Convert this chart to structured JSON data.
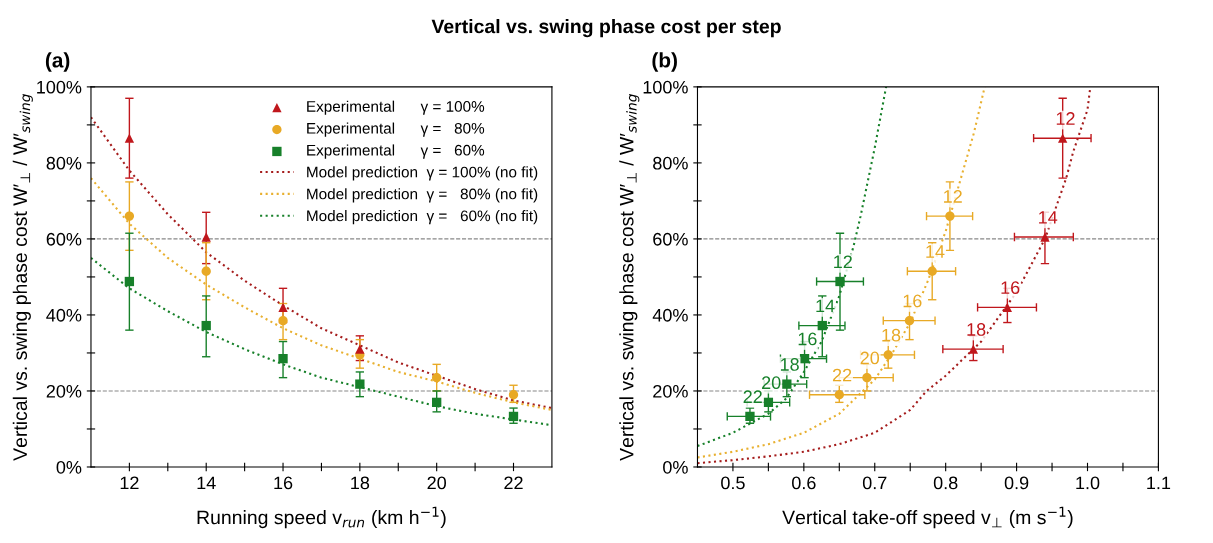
{
  "chart_data": [
    {
      "type": "scatter",
      "title": "(a)",
      "annotations": [
        "Vertical vs. swing phase cost per step"
      ],
      "xlabel": "Running speed v$_{run}$ (km h$^{−1}$)",
      "ylabel": "Vertical vs. swing phase cost W′$_{⊥}$ / W′$_{swing}$",
      "xlim": [
        11,
        23
      ],
      "xticks": [
        12,
        {
          "value": 13,
          "label": null
        },
        14,
        {
          "value": 15,
          "label": null
        },
        16,
        {
          "value": 17,
          "label": null
        },
        18,
        {
          "value": 19,
          "label": null
        },
        20,
        {
          "value": 21,
          "label": null
        },
        22
      ],
      "ylim": [
        0,
        100
      ],
      "yticks": [
        {
          "value": 0,
          "label": "0%"
        },
        {
          "value": 10,
          "label": null
        },
        {
          "value": 20,
          "label": "20%"
        },
        {
          "value": 30,
          "label": null
        },
        {
          "value": 40,
          "label": "40%"
        },
        {
          "value": 50,
          "label": null
        },
        {
          "value": 60,
          "label": "60%"
        },
        {
          "value": 70,
          "label": null
        },
        {
          "value": 80,
          "label": "80%"
        },
        {
          "value": 90,
          "label": null
        },
        {
          "value": 100,
          "label": "100%"
        }
      ],
      "ref_lines": [
        {
          "axis": "y",
          "value": 20,
          "color": "#888888",
          "line_style": "dashed"
        },
        {
          "axis": "y",
          "value": 60,
          "color": "#888888",
          "line_style": "dashed"
        }
      ],
      "grid": false,
      "legend": "top right",
      "series": [
        {
          "name": "Experimental      γ = 100%",
          "type": "scatter",
          "marker": "triangle",
          "color": "#c0171c",
          "x": [
            12,
            14,
            16,
            18
          ],
          "values": [
            86.5,
            60.5,
            42,
            31
          ],
          "errors": [
            [
              76,
              97
            ],
            [
              53.5,
              67
            ],
            [
              38,
              47
            ],
            [
              28,
              34.5
            ]
          ]
        },
        {
          "name": "Experimental      γ =   80%",
          "type": "scatter",
          "marker": "circle",
          "color": "#e8a925",
          "x": [
            12,
            14,
            16,
            18,
            20,
            22
          ],
          "values": [
            66,
            51.5,
            38.5,
            29.5,
            23.5,
            19
          ],
          "errors": [
            [
              57,
              75
            ],
            [
              44,
              59
            ],
            [
              33.5,
              43
            ],
            [
              26,
              33.5
            ],
            [
              20,
              27
            ],
            [
              17,
              21.5
            ]
          ]
        },
        {
          "name": "Experimental      γ =   60%",
          "type": "scatter",
          "marker": "square",
          "color": "#17802a",
          "x": [
            12,
            14,
            16,
            18,
            20,
            22
          ],
          "values": [
            48.8,
            37.2,
            28.5,
            21.8,
            17,
            13.3
          ],
          "errors": [
            [
              36,
              61.5
            ],
            [
              29,
              45
            ],
            [
              23.5,
              33
            ],
            [
              18.5,
              25
            ],
            [
              14.5,
              20
            ],
            [
              11.5,
              15.5
            ]
          ]
        },
        {
          "name": "Model prediction  γ = 100% (no fit)",
          "type": "line",
          "marker": "none",
          "line_style": "dotted",
          "color": "#a51c1c",
          "x": [
            11,
            12,
            13,
            14,
            15,
            16,
            17,
            18,
            19,
            20,
            21,
            22,
            23
          ],
          "values": [
            92,
            78,
            66.5,
            56.5,
            49,
            42.5,
            36.5,
            32,
            27.5,
            24,
            20.5,
            17.5,
            15.5
          ]
        },
        {
          "name": "Model prediction  γ =   80% (no fit)",
          "type": "line",
          "marker": "none",
          "line_style": "dotted",
          "color": "#e8b030",
          "x": [
            11,
            12,
            13,
            14,
            15,
            16,
            17,
            18,
            19,
            20,
            21,
            22,
            23
          ],
          "values": [
            76,
            64,
            55,
            48,
            42,
            36.5,
            32,
            28.5,
            25,
            22.5,
            19.5,
            17,
            15
          ]
        },
        {
          "name": "Model prediction  γ =   60% (no fit)",
          "type": "line",
          "marker": "none",
          "line_style": "dotted",
          "color": "#17802a",
          "x": [
            11,
            12,
            13,
            14,
            15,
            16,
            17,
            18,
            19,
            20,
            21,
            22,
            23
          ],
          "values": [
            55,
            47,
            41,
            35.5,
            31,
            27,
            23.5,
            21,
            18.5,
            16,
            14,
            12.5,
            11
          ]
        }
      ]
    },
    {
      "type": "scatter",
      "title": "(b)",
      "annotations": [
        {
          "text": "12",
          "x": 0.965,
          "y": 86.5
        },
        {
          "text": "14",
          "x": 0.94,
          "y": 60.5
        },
        {
          "text": "16",
          "x": 0.887,
          "y": 42
        },
        {
          "text": "18",
          "x": 0.839,
          "y": 31
        },
        {
          "text": "12",
          "x": 0.806,
          "y": 66
        },
        {
          "text": "14",
          "x": 0.781,
          "y": 51.5
        },
        {
          "text": "16",
          "x": 0.749,
          "y": 38.5
        },
        {
          "text": "18",
          "x": 0.719,
          "y": 29.5
        },
        {
          "text": "20",
          "x": 0.689,
          "y": 23.5
        },
        {
          "text": "22",
          "x": 0.65,
          "y": 19
        },
        {
          "text": "12",
          "x": 0.651,
          "y": 48.8
        },
        {
          "text": "14",
          "x": 0.626,
          "y": 37.2
        },
        {
          "text": "16",
          "x": 0.601,
          "y": 28.5
        },
        {
          "text": "18",
          "x": 0.576,
          "y": 21.8
        },
        {
          "text": "20",
          "x": 0.55,
          "y": 17
        },
        {
          "text": "22",
          "x": 0.524,
          "y": 13.3
        }
      ],
      "xlabel": "Vertical take-off speed v$_{⊥}$ (m s$^{−1}$)",
      "ylabel": "Vertical vs. swing phase cost W′$_{⊥}$ / W′$_{swing}$",
      "xlim": [
        0.45,
        1.1
      ],
      "xticks": [
        0.5,
        {
          "value": 0.55,
          "label": null
        },
        0.6,
        {
          "value": 0.65,
          "label": null
        },
        0.7,
        {
          "value": 0.75,
          "label": null
        },
        0.8,
        {
          "value": 0.85,
          "label": null
        },
        0.9,
        {
          "value": 0.95,
          "label": null
        },
        {
          "value": 1.0,
          "label": "1.0"
        },
        {
          "value": 1.05,
          "label": null
        },
        1.1
      ],
      "ylim": [
        0,
        100
      ],
      "yticks": [
        {
          "value": 0,
          "label": "0%"
        },
        {
          "value": 10,
          "label": null
        },
        {
          "value": 20,
          "label": "20%"
        },
        {
          "value": 30,
          "label": null
        },
        {
          "value": 40,
          "label": "40%"
        },
        {
          "value": 50,
          "label": null
        },
        {
          "value": 60,
          "label": "60%"
        },
        {
          "value": 70,
          "label": null
        },
        {
          "value": 80,
          "label": "80%"
        },
        {
          "value": 90,
          "label": null
        },
        {
          "value": 100,
          "label": "100%"
        }
      ],
      "ref_lines": [
        {
          "axis": "y",
          "value": 20,
          "color": "#888888",
          "line_style": "dashed"
        },
        {
          "axis": "y",
          "value": 60,
          "color": "#888888",
          "line_style": "dashed"
        }
      ],
      "grid": false,
      "series": [
        {
          "type": "scatter",
          "marker": "triangle",
          "color": "#c0171c",
          "x": [
            0.965,
            0.94,
            0.887,
            0.839
          ],
          "values": [
            86.5,
            60.5,
            42,
            31
          ],
          "errors": [
            [
              76,
              97
            ],
            [
              53.5,
              67
            ],
            [
              38,
              47
            ],
            [
              28,
              34.5
            ]
          ],
          "xerrors": [
            [
              0.924,
              1.005
            ],
            [
              0.897,
              0.98
            ],
            [
              0.845,
              0.928
            ],
            [
              0.796,
              0.881
            ]
          ]
        },
        {
          "type": "scatter",
          "marker": "circle",
          "color": "#e8a925",
          "x": [
            0.806,
            0.781,
            0.749,
            0.719,
            0.689,
            0.65
          ],
          "values": [
            66,
            51.5,
            38.5,
            29.5,
            23.5,
            19
          ],
          "errors": [
            [
              57,
              75
            ],
            [
              44,
              59
            ],
            [
              33.5,
              43
            ],
            [
              26,
              33.5
            ],
            [
              20,
              27
            ],
            [
              17,
              21.5
            ]
          ],
          "xerrors": [
            [
              0.773,
              0.838
            ],
            [
              0.746,
              0.814
            ],
            [
              0.712,
              0.785
            ],
            [
              0.68,
              0.756
            ],
            [
              0.65,
              0.726
            ],
            [
              0.608,
              0.686
            ]
          ]
        },
        {
          "type": "scatter",
          "marker": "square",
          "color": "#17802a",
          "x": [
            0.651,
            0.626,
            0.601,
            0.576,
            0.55,
            0.524
          ],
          "values": [
            48.8,
            37.2,
            28.5,
            21.8,
            17,
            13.3
          ],
          "errors": [
            [
              36,
              61.5
            ],
            [
              29,
              45
            ],
            [
              23.5,
              33
            ],
            [
              18.5,
              25
            ],
            [
              14.5,
              20
            ],
            [
              11.5,
              15.5
            ]
          ],
          "xerrors": [
            [
              0.618,
              0.684
            ],
            [
              0.593,
              0.658
            ],
            [
              0.567,
              0.632
            ],
            [
              0.544,
              0.604
            ],
            [
              0.52,
              0.58
            ],
            [
              0.492,
              0.553
            ]
          ]
        },
        {
          "type": "line",
          "marker": "none",
          "line_style": "dotted",
          "color": "#a51c1c",
          "x": [
            0.45,
            0.5,
            0.55,
            0.6,
            0.65,
            0.7,
            0.75,
            0.773,
            0.8,
            0.85,
            0.9,
            0.94,
            0.97,
            0.98,
            1.0,
            1.004
          ],
          "values": [
            1,
            1.8,
            2.8,
            4,
            6,
            9,
            15,
            20,
            24,
            33,
            46,
            60,
            76,
            83,
            94,
            100
          ]
        },
        {
          "type": "line",
          "marker": "none",
          "line_style": "dotted",
          "color": "#e8b030",
          "x": [
            0.45,
            0.5,
            0.55,
            0.6,
            0.65,
            0.7,
            0.725,
            0.75,
            0.775,
            0.8,
            0.82,
            0.84,
            0.855
          ],
          "values": [
            2.5,
            4,
            6,
            9,
            14,
            23,
            30,
            38,
            49,
            62,
            75,
            88,
            100
          ]
        },
        {
          "type": "line",
          "marker": "none",
          "line_style": "dotted",
          "color": "#17802a",
          "x": [
            0.45,
            0.5,
            0.55,
            0.575,
            0.6,
            0.625,
            0.65,
            0.67,
            0.68,
            0.69,
            0.7,
            0.716
          ],
          "values": [
            5.5,
            9,
            14,
            18,
            25,
            33,
            45,
            58,
            66,
            75,
            84,
            100
          ]
        }
      ]
    }
  ]
}
